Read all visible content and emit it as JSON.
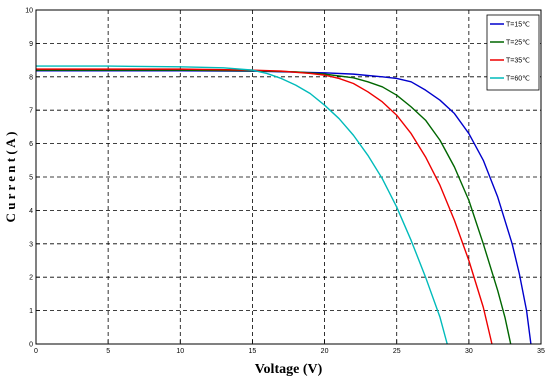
{
  "chart_data": {
    "type": "line",
    "title": "",
    "xlabel": "Voltage (V)",
    "ylabel": "C u r r e n t ( A )",
    "xlim": [
      0,
      35
    ],
    "ylim": [
      0,
      10
    ],
    "xticks": [
      0,
      5,
      10,
      15,
      20,
      25,
      30,
      35
    ],
    "yticks": [
      0,
      1,
      2,
      3,
      4,
      5,
      6,
      7,
      8,
      9,
      10
    ],
    "grid": true,
    "grid_style": "dashed",
    "legend_position": "top-right",
    "series": [
      {
        "name": "T=15℃",
        "color": "#0000cc",
        "points": [
          [
            0,
            8.18
          ],
          [
            5,
            8.18
          ],
          [
            10,
            8.18
          ],
          [
            15,
            8.17
          ],
          [
            20,
            8.12
          ],
          [
            22,
            8.08
          ],
          [
            24,
            8.0
          ],
          [
            25,
            7.95
          ],
          [
            26,
            7.85
          ],
          [
            27,
            7.6
          ],
          [
            28,
            7.3
          ],
          [
            29,
            6.9
          ],
          [
            30,
            6.3
          ],
          [
            31,
            5.5
          ],
          [
            32,
            4.4
          ],
          [
            33,
            3.0
          ],
          [
            33.5,
            2.1
          ],
          [
            34,
            1.0
          ],
          [
            34.3,
            0
          ]
        ]
      },
      {
        "name": "T=25℃",
        "color": "#006600",
        "points": [
          [
            0,
            8.2
          ],
          [
            5,
            8.2
          ],
          [
            10,
            8.2
          ],
          [
            15,
            8.18
          ],
          [
            18,
            8.15
          ],
          [
            20,
            8.08
          ],
          [
            22,
            7.97
          ],
          [
            23,
            7.85
          ],
          [
            24,
            7.7
          ],
          [
            25,
            7.45
          ],
          [
            26,
            7.1
          ],
          [
            27,
            6.7
          ],
          [
            28,
            6.1
          ],
          [
            29,
            5.3
          ],
          [
            30,
            4.3
          ],
          [
            31,
            3.0
          ],
          [
            32,
            1.6
          ],
          [
            32.5,
            0.8
          ],
          [
            32.9,
            0
          ]
        ]
      },
      {
        "name": "T=35℃",
        "color": "#ee0000",
        "points": [
          [
            0,
            8.23
          ],
          [
            5,
            8.23
          ],
          [
            10,
            8.23
          ],
          [
            15,
            8.2
          ],
          [
            17,
            8.17
          ],
          [
            19,
            8.1
          ],
          [
            20,
            8.05
          ],
          [
            21,
            7.95
          ],
          [
            22,
            7.8
          ],
          [
            23,
            7.55
          ],
          [
            24,
            7.25
          ],
          [
            25,
            6.85
          ],
          [
            26,
            6.3
          ],
          [
            27,
            5.6
          ],
          [
            28,
            4.75
          ],
          [
            29,
            3.7
          ],
          [
            30,
            2.5
          ],
          [
            31,
            1.1
          ],
          [
            31.6,
            0
          ]
        ]
      },
      {
        "name": "T=60℃",
        "color": "#00bbbb",
        "points": [
          [
            0,
            8.32
          ],
          [
            5,
            8.32
          ],
          [
            10,
            8.3
          ],
          [
            13,
            8.27
          ],
          [
            15,
            8.2
          ],
          [
            16,
            8.1
          ],
          [
            17,
            7.95
          ],
          [
            18,
            7.75
          ],
          [
            19,
            7.5
          ],
          [
            20,
            7.15
          ],
          [
            21,
            6.75
          ],
          [
            22,
            6.25
          ],
          [
            23,
            5.65
          ],
          [
            24,
            4.95
          ],
          [
            25,
            4.1
          ],
          [
            26,
            3.1
          ],
          [
            27,
            2.0
          ],
          [
            28,
            0.8
          ],
          [
            28.5,
            0
          ]
        ]
      }
    ]
  }
}
